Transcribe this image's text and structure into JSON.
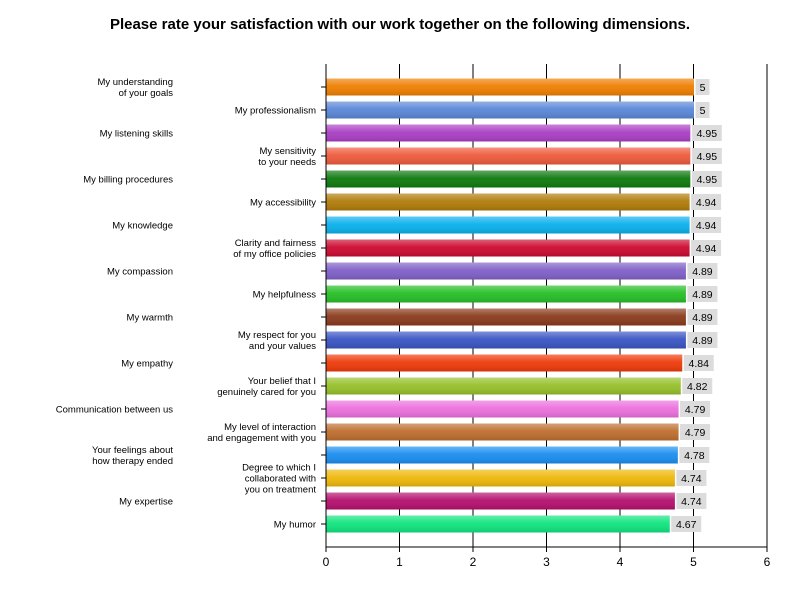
{
  "chart_data": {
    "type": "bar",
    "orientation": "horizontal",
    "title": "Please rate your satisfaction with our work together on the following dimensions.",
    "xlim": [
      0,
      6
    ],
    "x_ticks": [
      "0",
      "1",
      "2",
      "3",
      "4",
      "5",
      "6"
    ],
    "grid": "vertical",
    "categories": [
      "My understanding of your goals",
      "My professionalism",
      "My listening skills",
      "My sensitivity to your needs",
      "My billing procedures",
      "My accessibility",
      "My knowledge",
      "Clarity and fairness of my office policies",
      "My compassion",
      "My helpfulness",
      "My warmth",
      "My respect for you and your values",
      "My empathy",
      "Your belief that I genuinely cared for you",
      "Communication between us",
      "My level of interaction and engagement with you",
      "Your feelings about how therapy ended",
      "Degree to which I collaborated with you on treatment",
      "My expertise",
      "My humor"
    ],
    "category_lines": [
      [
        "My understanding",
        "of your goals"
      ],
      [
        "My professionalism"
      ],
      [
        "My listening skills"
      ],
      [
        "My sensitivity",
        "to your needs"
      ],
      [
        "My billing procedures"
      ],
      [
        "My accessibility"
      ],
      [
        "My knowledge"
      ],
      [
        "Clarity and fairness",
        "of my office policies"
      ],
      [
        "My compassion"
      ],
      [
        "My helpfulness"
      ],
      [
        "My warmth"
      ],
      [
        "My respect for you",
        "and your values"
      ],
      [
        "My empathy"
      ],
      [
        "Your belief that I",
        "genuinely cared for you"
      ],
      [
        "Communication between us"
      ],
      [
        "My level of interaction",
        "and engagement with you"
      ],
      [
        "Your feelings about",
        "how therapy ended"
      ],
      [
        "Degree to which I",
        "collaborated with",
        "you on treatment"
      ],
      [
        "My expertise"
      ],
      [
        "My humor"
      ]
    ],
    "values": [
      5,
      5,
      4.95,
      4.95,
      4.95,
      4.94,
      4.94,
      4.94,
      4.89,
      4.89,
      4.89,
      4.89,
      4.84,
      4.82,
      4.79,
      4.79,
      4.78,
      4.74,
      4.74,
      4.67
    ],
    "value_labels": [
      "5",
      "5",
      "4.95",
      "4.95",
      "4.95",
      "4.94",
      "4.94",
      "4.94",
      "4.89",
      "4.89",
      "4.89",
      "4.89",
      "4.84",
      "4.82",
      "4.79",
      "4.79",
      "4.78",
      "4.74",
      "4.74",
      "4.67"
    ],
    "colors": [
      "#ee7f00",
      "#5a87d8",
      "#aa3fc4",
      "#ee5a3c",
      "#0e7a0e",
      "#b07c0a",
      "#0ab0ec",
      "#cc0a30",
      "#7f60c8",
      "#26be26",
      "#8a3a1c",
      "#3a55c4",
      "#ee3a0a",
      "#96c02a",
      "#ec70de",
      "#be6e2e",
      "#1a8ef0",
      "#eeb80a",
      "#b4106e",
      "#10e47e"
    ]
  }
}
